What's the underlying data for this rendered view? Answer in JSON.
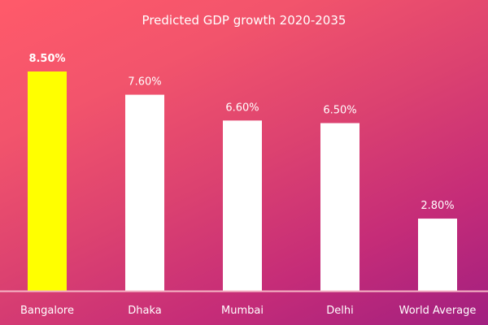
{
  "chart_data": {
    "type": "bar",
    "title": "Predicted GDP growth 2020-2035",
    "xlabel": "",
    "ylabel": "",
    "categories": [
      "Bangalore",
      "Dhaka",
      "Mumbai",
      "Delhi",
      "World Average"
    ],
    "values": [
      8.5,
      7.6,
      6.6,
      6.5,
      2.8
    ],
    "value_labels": [
      "8.50%",
      "7.60%",
      "6.60%",
      "6.50%",
      "2.80%"
    ],
    "unit": "%",
    "ylim": [
      0,
      8.5
    ],
    "grid": false,
    "legend": "none",
    "highlight_index": 0,
    "colors": {
      "highlight_bar": "#ffff00",
      "bar": "#ffffff",
      "axis": "#f6b6c6",
      "text": "#ffffff",
      "background_start": "#ff5a6a",
      "background_end": "#a11f80"
    }
  }
}
